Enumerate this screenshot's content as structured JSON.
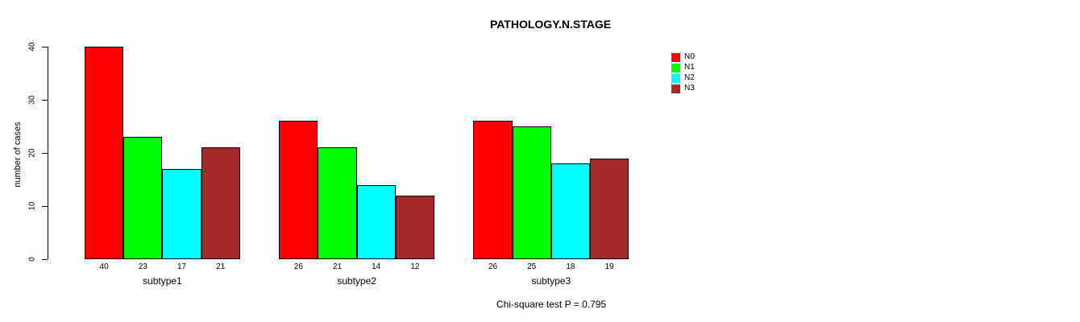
{
  "title": "PATHOLOGY.N.STAGE",
  "annotation": "Chi-square test P = 0.795",
  "chart_data": {
    "type": "bar",
    "title": "PATHOLOGY.N.STAGE",
    "xlabel": "",
    "ylabel": "number of cases",
    "categories": [
      "subtype1",
      "subtype2",
      "subtype3"
    ],
    "series": [
      {
        "name": "N0",
        "color": "#FF0000",
        "values": [
          40,
          26,
          26
        ]
      },
      {
        "name": "N1",
        "color": "#00FF00",
        "values": [
          23,
          21,
          25
        ]
      },
      {
        "name": "N2",
        "color": "#00FFFF",
        "values": [
          17,
          14,
          18
        ]
      },
      {
        "name": "N3",
        "color": "#A52A2A",
        "values": [
          21,
          12,
          19
        ]
      }
    ],
    "ylim": [
      0,
      40
    ],
    "yticks": [
      0,
      10,
      20,
      30,
      40
    ],
    "grid": false,
    "bar_value_labels": true,
    "legend_position": "top-right",
    "annotation": "Chi-square test P = 0.795"
  },
  "colors": {
    "background": "#FFFFFF",
    "axis": "#000000",
    "text": "#000000"
  }
}
